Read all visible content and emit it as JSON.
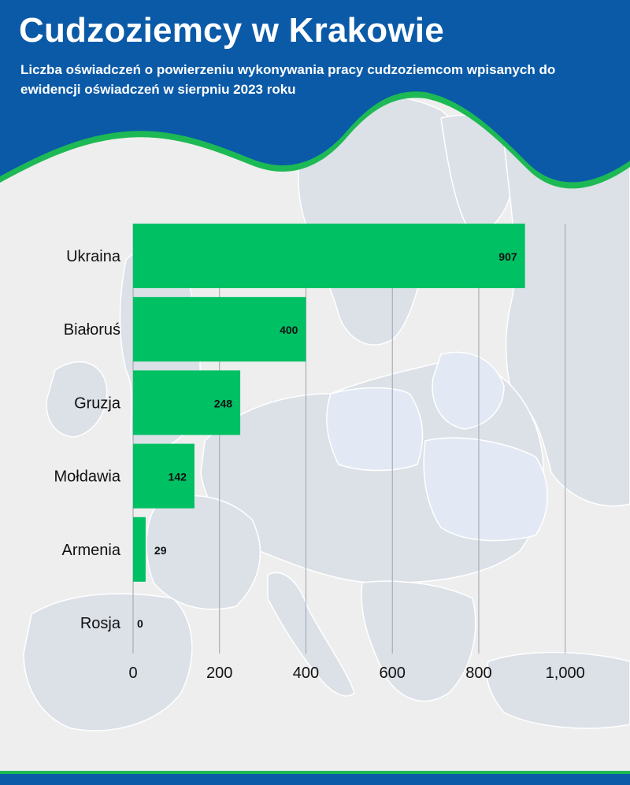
{
  "header": {
    "title": "Cudzoziemcy w Krakowie",
    "subtitle": "Liczba oświadczeń o powierzeniu wykonywania pracy cudzoziemcom wpisanych do ewidencji oświadczeń w sierpniu 2023 roku"
  },
  "colors": {
    "header_blue": "#0a5aa8",
    "accent_green": "#00c064",
    "bar_green": "#00c064",
    "map_land": "#dce1e8",
    "map_highlight": "#e2e9f4"
  },
  "chart_data": {
    "type": "bar",
    "orientation": "horizontal",
    "categories": [
      "Ukraina",
      "Białoruś",
      "Gruzja",
      "Mołdawia",
      "Armenia",
      "Rosja"
    ],
    "values": [
      907,
      400,
      248,
      142,
      29,
      0
    ],
    "data_labels": [
      "907",
      "400",
      "248",
      "142",
      "29",
      "0"
    ],
    "x_ticks": [
      0,
      200,
      400,
      600,
      800,
      1000
    ],
    "x_tick_labels": [
      "0",
      "200",
      "400",
      "600",
      "800",
      "1,000"
    ],
    "xlim": [
      0,
      1000
    ],
    "grid": true
  }
}
